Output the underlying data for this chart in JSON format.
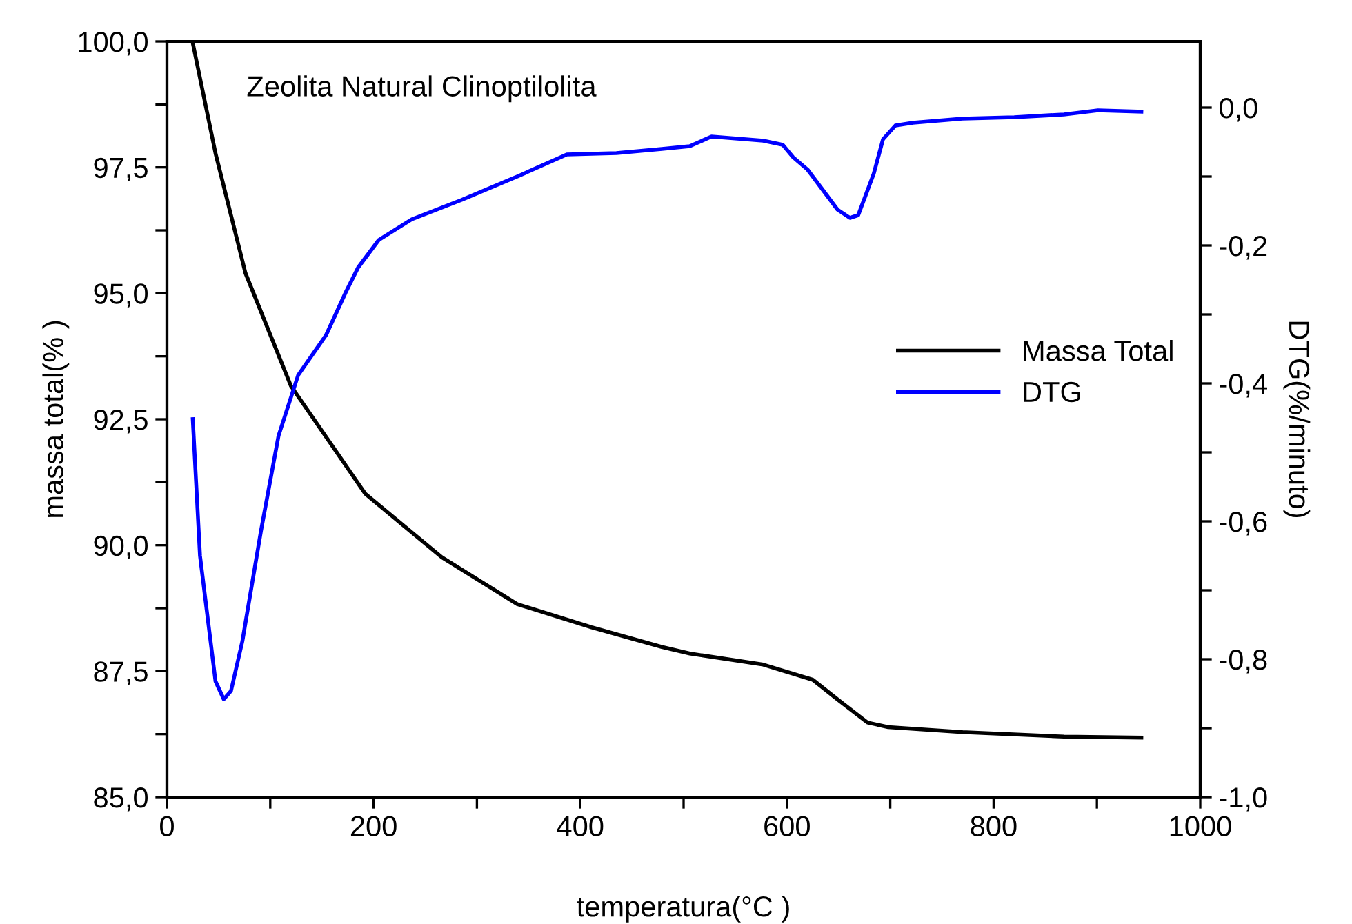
{
  "chart_data": {
    "type": "line",
    "title": "Zeolita Natural Clinoptilolita",
    "xlabel": "temperatura(°C )",
    "ylabel": "massa total(% )",
    "y2label": "DTG(%/minuto)",
    "xlim": [
      0,
      1000
    ],
    "ylim": [
      85,
      100
    ],
    "y2lim": [
      -1.0,
      0.096
    ],
    "xticks": [
      0,
      {
        "value": 100,
        "label": null
      },
      200,
      {
        "value": 300,
        "label": null
      },
      400,
      {
        "value": 500,
        "label": null
      },
      600,
      {
        "value": 700,
        "label": null
      },
      800,
      {
        "value": 900,
        "label": null
      },
      1000
    ],
    "yticks": [
      {
        "value": 85,
        "label": "85,0"
      },
      {
        "value": 86.25,
        "label": null
      },
      {
        "value": 87.5,
        "label": "87,5"
      },
      {
        "value": 88.75,
        "label": null
      },
      {
        "value": 90,
        "label": "90,0"
      },
      {
        "value": 91.25,
        "label": null
      },
      {
        "value": 92.5,
        "label": "92,5"
      },
      {
        "value": 93.75,
        "label": null
      },
      {
        "value": 95,
        "label": "95,0"
      },
      {
        "value": 96.25,
        "label": null
      },
      {
        "value": 97.5,
        "label": "97,5"
      },
      {
        "value": 98.75,
        "label": null
      },
      {
        "value": 100,
        "label": "100,0"
      }
    ],
    "y2ticks": [
      {
        "value": -1.0,
        "label": "-1,0"
      },
      {
        "value": -0.9,
        "label": null
      },
      {
        "value": -0.8,
        "label": "-0,8"
      },
      {
        "value": -0.7,
        "label": null
      },
      {
        "value": -0.6,
        "label": "-0,6"
      },
      {
        "value": -0.5,
        "label": null
      },
      {
        "value": -0.4,
        "label": "-0,4"
      },
      {
        "value": -0.3,
        "label": null
      },
      {
        "value": -0.2,
        "label": "-0,2"
      },
      {
        "value": -0.1,
        "label": null
      },
      {
        "value": 0.0,
        "label": "0,0"
      }
    ],
    "grid": false,
    "legend": "right",
    "line_style": "solid",
    "marker": "none",
    "series": [
      {
        "name": "Massa Total",
        "color": "#000000",
        "x": [
          25,
          47,
          76,
          120,
          192,
          266,
          339,
          411,
          479,
          506,
          577,
          625,
          649,
          678,
          698,
          770,
          868,
          943
        ],
        "values": [
          99.97,
          97.78,
          95.4,
          93.16,
          91.02,
          89.76,
          88.83,
          88.37,
          87.98,
          87.85,
          87.63,
          87.33,
          86.94,
          86.48,
          86.39,
          86.29,
          86.2,
          86.18
        ]
      },
      {
        "name": "DTG",
        "color": "#0000ff",
        "axis": "y2",
        "x": [
          25,
          32,
          47,
          55,
          62,
          73,
          91,
          108,
          127,
          154,
          173,
          185,
          205,
          237,
          285,
          339,
          387,
          435,
          479,
          506,
          527,
          577,
          596,
          606,
          620,
          634,
          649,
          661,
          669,
          684,
          693,
          705,
          722,
          770,
          820,
          868,
          901,
          943
        ],
        "values": [
          -0.452,
          -0.65,
          -0.832,
          -0.858,
          -0.846,
          -0.774,
          -0.614,
          -0.476,
          -0.388,
          -0.33,
          -0.268,
          -0.232,
          -0.192,
          -0.162,
          -0.134,
          -0.1,
          -0.068,
          -0.066,
          -0.06,
          -0.056,
          -0.042,
          -0.048,
          -0.054,
          -0.072,
          -0.09,
          -0.118,
          -0.148,
          -0.16,
          -0.156,
          -0.096,
          -0.046,
          -0.026,
          -0.022,
          -0.016,
          -0.014,
          -0.01,
          -0.004,
          -0.006
        ]
      }
    ]
  }
}
